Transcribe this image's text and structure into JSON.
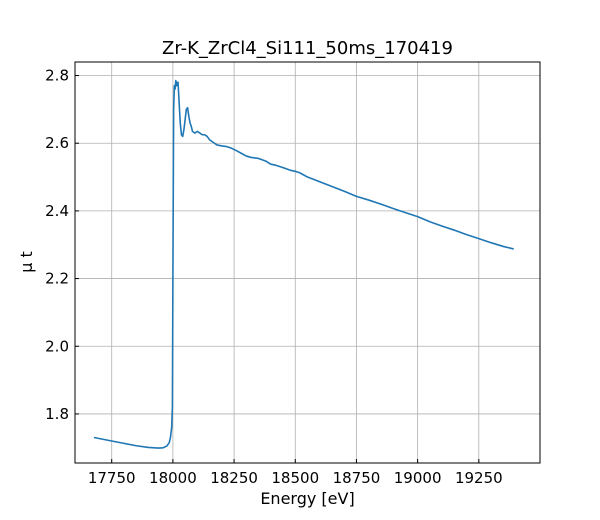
{
  "chart_data": {
    "type": "line",
    "title": "Zr-K_ZrCl4_Si111_50ms_170419",
    "xlabel": "Energy [eV]",
    "ylabel": "μ t",
    "xlim": [
      17600,
      19500
    ],
    "ylim": [
      1.655,
      2.84
    ],
    "xticks": [
      17750,
      18000,
      18250,
      18500,
      18750,
      19000,
      19250
    ],
    "yticks": [
      1.8,
      2.0,
      2.2,
      2.4,
      2.6,
      2.8
    ],
    "grid": true,
    "line_color": "#1f77b4",
    "series": [
      {
        "x": [
          17680,
          17750,
          17800,
          17850,
          17900,
          17940,
          17960,
          17975,
          17985,
          17990,
          17995,
          17998,
          18000,
          18003,
          18006,
          18009,
          18012,
          18015,
          18018,
          18021,
          18024,
          18027,
          18030,
          18035,
          18040,
          18045,
          18050,
          18055,
          18060,
          18065,
          18070,
          18075,
          18080,
          18090,
          18100,
          18110,
          18120,
          18130,
          18140,
          18150,
          18160,
          18170,
          18180,
          18200,
          18220,
          18240,
          18260,
          18280,
          18300,
          18320,
          18350,
          18380,
          18400,
          18420,
          18450,
          18480,
          18500,
          18520,
          18550,
          18600,
          18650,
          18700,
          18750,
          18800,
          18850,
          18900,
          18950,
          19000,
          19050,
          19100,
          19150,
          19200,
          19250,
          19300,
          19350,
          19390
        ],
        "y": [
          1.73,
          1.72,
          1.713,
          1.706,
          1.701,
          1.699,
          1.7,
          1.705,
          1.715,
          1.73,
          1.76,
          1.82,
          2.2,
          2.7,
          2.77,
          2.76,
          2.785,
          2.77,
          2.78,
          2.78,
          2.74,
          2.7,
          2.66,
          2.625,
          2.62,
          2.64,
          2.67,
          2.7,
          2.705,
          2.68,
          2.66,
          2.65,
          2.635,
          2.63,
          2.635,
          2.63,
          2.625,
          2.625,
          2.62,
          2.61,
          2.605,
          2.6,
          2.595,
          2.592,
          2.59,
          2.585,
          2.578,
          2.57,
          2.562,
          2.558,
          2.555,
          2.547,
          2.538,
          2.535,
          2.528,
          2.52,
          2.517,
          2.512,
          2.5,
          2.486,
          2.472,
          2.458,
          2.443,
          2.432,
          2.42,
          2.407,
          2.395,
          2.383,
          2.368,
          2.355,
          2.343,
          2.33,
          2.318,
          2.306,
          2.295,
          2.288
        ]
      }
    ]
  }
}
